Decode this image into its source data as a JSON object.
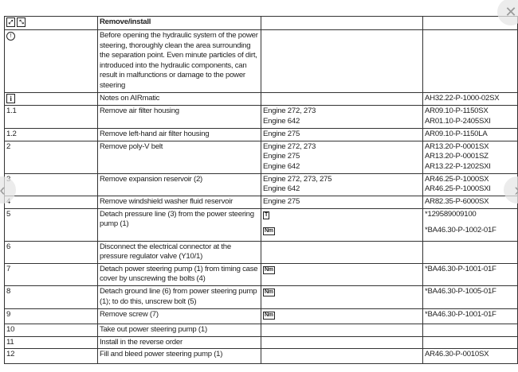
{
  "header": {
    "title": "Remove/install",
    "icons": [
      "expand-icon",
      "collapse-icon"
    ]
  },
  "notice": {
    "icon": "warning-circle-icon",
    "text": "Before opening the hydraulic system of the power steering, thoroughly clean the area surrounding the separation point. Even minute particles of dirt, introduced into the hydraulic components, can result in malfunctions or damage to the power steering"
  },
  "info": {
    "icon": "info-icon",
    "text": "Notes on AIRmatic",
    "ref": "AH32.22-P-1000-02SX"
  },
  "rows": [
    {
      "step": "1.1",
      "action": "Remove air filter housing",
      "engines": [
        "Engine 272, 273",
        "Engine 642"
      ],
      "refs": [
        "AR09.10-P-1150SX",
        "AR01.10-P-2405SXI"
      ]
    },
    {
      "step": "1.2",
      "action": "Remove left-hand air filter housing",
      "engines": [
        "Engine 275"
      ],
      "refs": [
        "AR09.10-P-1150LA"
      ]
    },
    {
      "step": "2",
      "action": "Remove poly-V belt",
      "engines": [
        "Engine 272, 273",
        "Engine 275",
        "Engine 642"
      ],
      "refs": [
        "AR13.20-P-0001SX",
        "AR13.20-P-0001SZ",
        "AR13.22-P-1202SXI"
      ]
    },
    {
      "step": "3",
      "action": "Remove expansion reservoir (2)",
      "engines": [
        "Engine 272, 273, 275",
        "Engine 642"
      ],
      "refs": [
        "AR46.25-P-1000SX",
        "AR46.25-P-1000SXI"
      ]
    },
    {
      "step": "4",
      "action": "Remove windshield washer fluid reservoir",
      "engines": [
        "Engine 275"
      ],
      "refs": [
        "AR82.35-P-6000SX"
      ]
    },
    {
      "step": "5",
      "action": "Detach pressure line (3) from the power steering pump (1)",
      "icons": [
        "special-tool-icon",
        "torque-nm-icon"
      ],
      "refs": [
        "*129589009100",
        "*BA46.30-P-1002-01F"
      ]
    },
    {
      "step": "6",
      "action": "Disconnect the electrical connector at the pressure regulator valve (Y10/1)"
    },
    {
      "step": "7",
      "action": "Detach power steering pump (1) from timing case cover by unscrewing the bolts (4)",
      "icons": [
        "torque-nm-icon"
      ],
      "refs": [
        "*BA46.30-P-1001-01F"
      ]
    },
    {
      "step": "8",
      "action": "Detach ground line (6) from power steering pump (1); to do this, unscrew bolt (5)",
      "icons": [
        "torque-nm-icon"
      ],
      "refs": [
        "*BA46.30-P-1005-01F"
      ]
    },
    {
      "step": "9",
      "action": "Remove screw (7)",
      "icons": [
        "torque-nm-icon"
      ],
      "refs": [
        "*BA46.30-P-1001-01F"
      ]
    },
    {
      "step": "10",
      "action": "Take out power steering pump (1)"
    },
    {
      "step": "11",
      "action": "Install in the reverse order"
    },
    {
      "step": "12",
      "action": "Fill and bleed power steering pump (1)",
      "refs": [
        "AR46.30-P-0010SX"
      ]
    }
  ],
  "glyphs": {
    "nm": "Nm",
    "tool": "T",
    "info": "i",
    "warn": "!"
  },
  "overlay": {
    "close": "✕",
    "prev": "‹",
    "next": "›"
  }
}
